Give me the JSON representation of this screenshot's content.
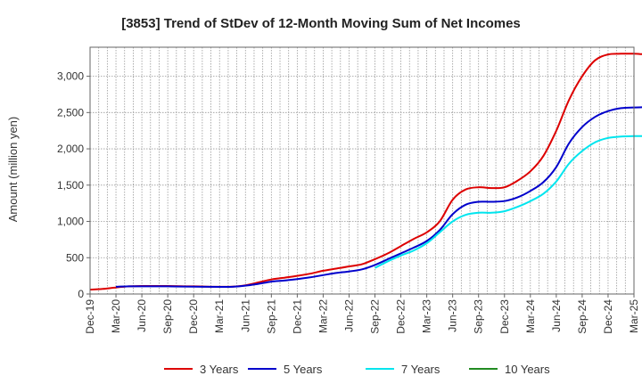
{
  "chart_data": {
    "type": "line",
    "title": "[3853]  Trend of StDev of 12-Month Moving Sum of Net Incomes",
    "xlabel": "",
    "ylabel": "Amount (million yen)",
    "ylim": [
      0,
      3400
    ],
    "yticks": [
      0,
      500,
      1000,
      1500,
      2000,
      2500,
      3000
    ],
    "ytick_labels": [
      "0",
      "500",
      "1,000",
      "1,500",
      "2,000",
      "2,500",
      "3,000"
    ],
    "xtick_labels": [
      "Dec-19",
      "Mar-20",
      "Jun-20",
      "Sep-20",
      "Dec-20",
      "Mar-21",
      "Jun-21",
      "Sep-21",
      "Dec-21",
      "Mar-22",
      "Jun-22",
      "Sep-22",
      "Dec-22",
      "Mar-23",
      "Jun-23",
      "Sep-23",
      "Dec-23",
      "Mar-24",
      "Jun-24",
      "Sep-24",
      "Dec-24",
      "Mar-25"
    ],
    "grid": true,
    "legend_position": "bottom",
    "series": [
      {
        "name": "3 Years",
        "color": "#dd0000",
        "values": [
          60,
          70,
          90,
          105,
          110,
          110,
          110,
          108,
          105,
          102,
          100,
          102,
          120,
          160,
          200,
          225,
          250,
          280,
          320,
          350,
          380,
          410,
          480,
          560,
          660,
          760,
          850,
          1000,
          1300,
          1440,
          1470,
          1460,
          1470,
          1560,
          1690,
          1900,
          2250,
          2680,
          3000,
          3220,
          3300,
          3310,
          3310,
          3300,
          3290,
          3280,
          3270,
          3260,
          3250
        ]
      },
      {
        "name": "5 Years",
        "color": "#0000cc",
        "values": [
          null,
          null,
          100,
          105,
          105,
          105,
          105,
          103,
          102,
          100,
          98,
          100,
          115,
          140,
          170,
          185,
          205,
          230,
          260,
          290,
          310,
          340,
          400,
          480,
          560,
          640,
          730,
          880,
          1100,
          1230,
          1270,
          1270,
          1280,
          1330,
          1420,
          1540,
          1750,
          2080,
          2300,
          2440,
          2520,
          2560,
          2570,
          2575,
          2575,
          2575,
          2575,
          2575,
          2575
        ]
      },
      {
        "name": "7 Years",
        "color": "#00e5ee",
        "values": [
          null,
          null,
          null,
          null,
          null,
          null,
          null,
          null,
          null,
          null,
          null,
          null,
          null,
          null,
          null,
          null,
          null,
          null,
          null,
          null,
          null,
          null,
          360,
          450,
          530,
          600,
          700,
          850,
          1000,
          1090,
          1120,
          1120,
          1140,
          1200,
          1280,
          1380,
          1550,
          1800,
          1970,
          2090,
          2150,
          2170,
          2175,
          2175,
          2175,
          2175,
          2175,
          2175,
          2175
        ]
      },
      {
        "name": "10 Years",
        "color": "#228b22",
        "values": []
      }
    ]
  }
}
